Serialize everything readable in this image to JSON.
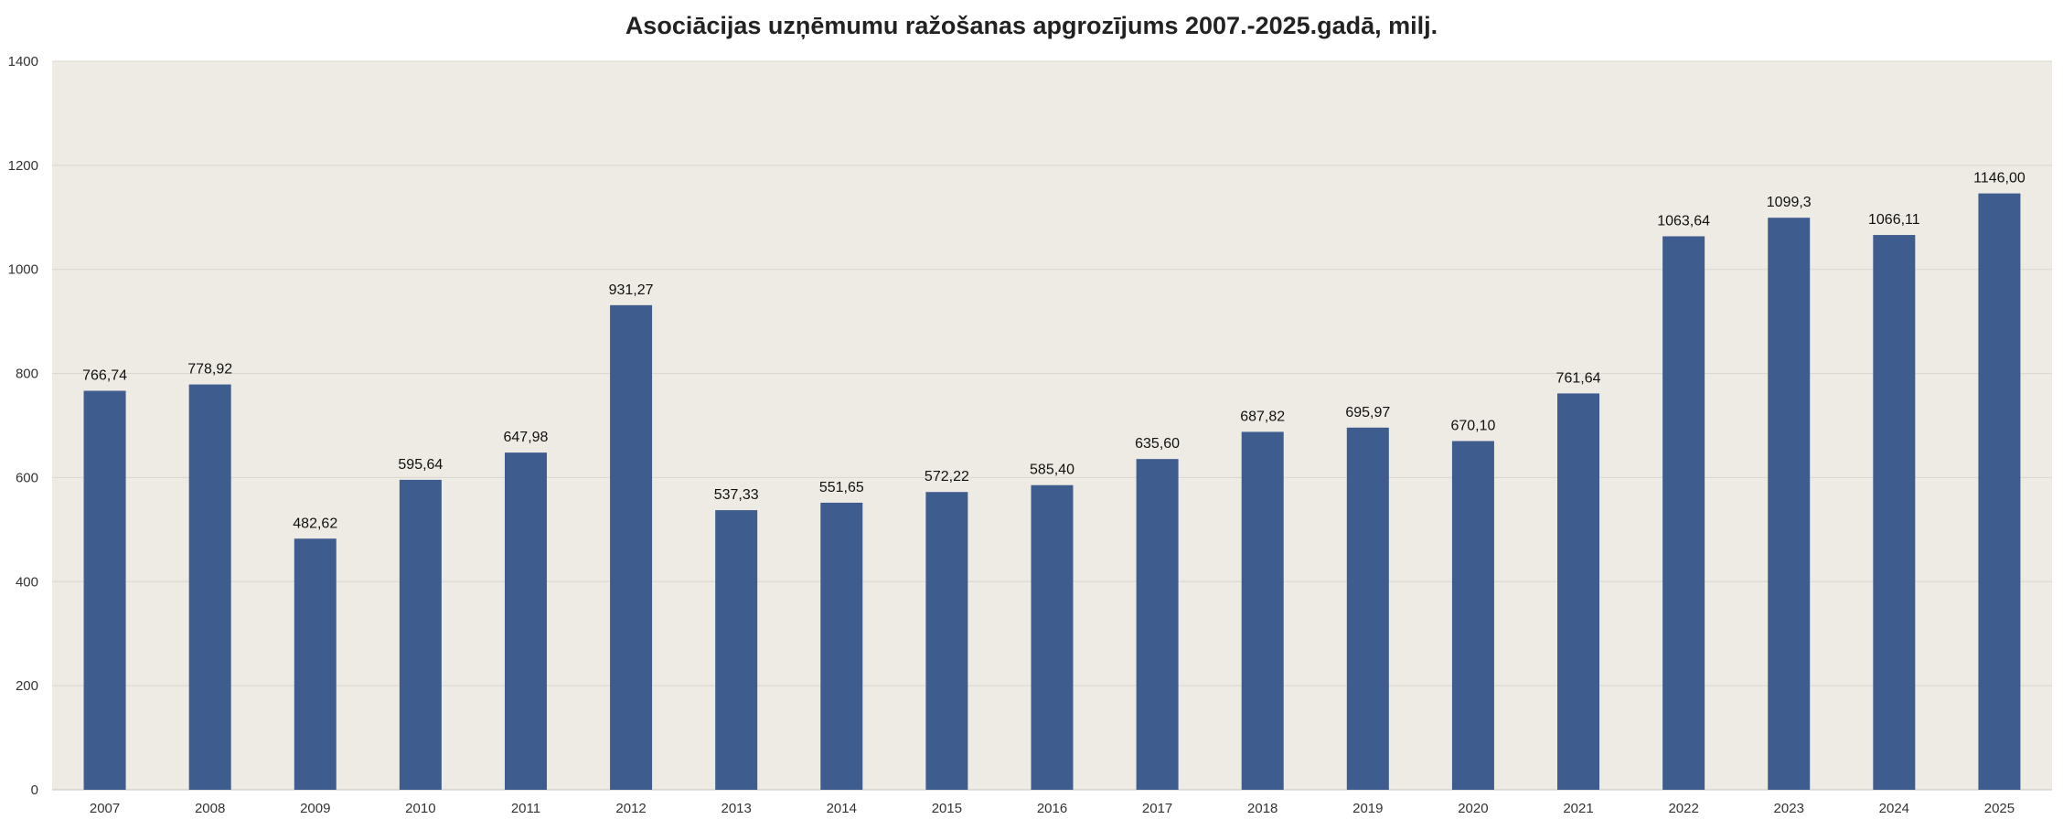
{
  "chart_data": {
    "type": "bar",
    "title": "Asociācijas uzņēmumu ražošanas apgrozījums 2007.-2025.gadā, milj.",
    "xlabel": "",
    "ylabel": "",
    "categories": [
      "2007",
      "2008",
      "2009",
      "2010",
      "2011",
      "2012",
      "2013",
      "2014",
      "2015",
      "2016",
      "2017",
      "2018",
      "2019",
      "2020",
      "2021",
      "2022",
      "2023",
      "2024",
      "2025"
    ],
    "values": [
      766.74,
      778.92,
      482.62,
      595.64,
      647.98,
      931.27,
      537.33,
      551.65,
      572.22,
      585.4,
      635.6,
      687.82,
      695.97,
      670.1,
      761.64,
      1063.64,
      1099.3,
      1066.11,
      1146.0
    ],
    "data_labels": [
      "766,74",
      "778,92",
      "482,62",
      "595,64",
      "647,98",
      "931,27",
      "537,33",
      "551,65",
      "572,22",
      "585,40",
      "635,60",
      "687,82",
      "695,97",
      "670,10",
      "761,64",
      "1063,64",
      "1099,3",
      "1066,11",
      "1146,00"
    ],
    "ylim": [
      0,
      1400
    ],
    "yticks": [
      0,
      200,
      400,
      600,
      800,
      1000,
      1200,
      1400
    ],
    "grid": true,
    "legend": "none",
    "colors": {
      "bar": "#3f5c8f",
      "plot_background": "#eeebe4",
      "gridline": "#d9d6cf"
    }
  }
}
